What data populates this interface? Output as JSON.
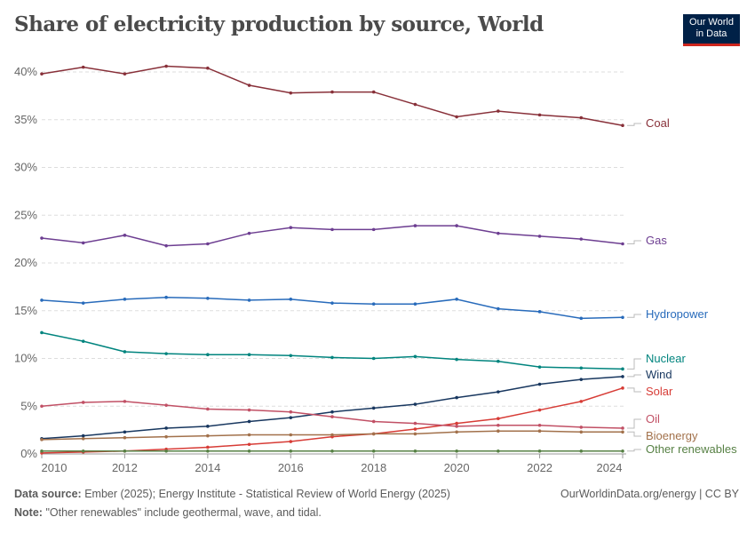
{
  "title": "Share of electricity production by source, World",
  "logo": {
    "line1": "Our World",
    "line2": "in Data"
  },
  "footer": {
    "source_label": "Data source:",
    "source": "Ember (2025); Energy Institute - Statistical Review of World Energy (2025)",
    "note_label": "Note:",
    "note": "\"Other renewables\" include geothermal, wave, and tidal.",
    "url": "OurWorldinData.org/energy | CC BY"
  },
  "chart_data": {
    "type": "line",
    "title": "Share of electricity production by source, World",
    "x": [
      2010,
      2011,
      2012,
      2013,
      2014,
      2015,
      2016,
      2017,
      2018,
      2019,
      2020,
      2021,
      2022,
      2023,
      2024
    ],
    "xticks": [
      "2010",
      "2012",
      "2014",
      "2016",
      "2018",
      "2020",
      "2022",
      "2024"
    ],
    "yticks": [
      "0%",
      "5%",
      "10%",
      "15%",
      "20%",
      "25%",
      "30%",
      "35%",
      "40%"
    ],
    "ylim": [
      0,
      40
    ],
    "grid": "horizontal dashed",
    "legend": "line-end labels right",
    "series": [
      {
        "name": "Coal",
        "color": "#883039",
        "values": [
          39.8,
          40.5,
          39.8,
          40.6,
          40.4,
          38.6,
          37.8,
          37.9,
          37.9,
          36.6,
          35.3,
          35.9,
          35.5,
          35.2,
          34.4
        ]
      },
      {
        "name": "Gas",
        "color": "#6d3e91",
        "values": [
          22.6,
          22.1,
          22.9,
          21.8,
          22.0,
          23.1,
          23.7,
          23.5,
          23.5,
          23.9,
          23.9,
          23.1,
          22.8,
          22.5,
          22.0
        ]
      },
      {
        "name": "Hydropower",
        "color": "#286bbb",
        "values": [
          16.1,
          15.8,
          16.2,
          16.4,
          16.3,
          16.1,
          16.2,
          15.8,
          15.7,
          15.7,
          16.2,
          15.2,
          14.9,
          14.2,
          14.3
        ]
      },
      {
        "name": "Nuclear",
        "color": "#00847e",
        "values": [
          12.7,
          11.8,
          10.7,
          10.5,
          10.4,
          10.4,
          10.3,
          10.1,
          10.0,
          10.2,
          9.9,
          9.7,
          9.1,
          9.0,
          8.9
        ]
      },
      {
        "name": "Wind",
        "color": "#18375f",
        "values": [
          1.6,
          1.9,
          2.3,
          2.7,
          2.9,
          3.4,
          3.8,
          4.4,
          4.8,
          5.2,
          5.9,
          6.5,
          7.3,
          7.8,
          8.1
        ]
      },
      {
        "name": "Solar",
        "color": "#d73c36",
        "values": [
          0.1,
          0.2,
          0.3,
          0.5,
          0.7,
          1.0,
          1.3,
          1.8,
          2.1,
          2.6,
          3.2,
          3.7,
          4.6,
          5.5,
          6.9
        ]
      },
      {
        "name": "Oil",
        "color": "#c15065",
        "values": [
          5.0,
          5.4,
          5.5,
          5.1,
          4.7,
          4.6,
          4.4,
          3.9,
          3.4,
          3.2,
          2.9,
          3.0,
          3.0,
          2.8,
          2.7
        ]
      },
      {
        "name": "Bioenergy",
        "color": "#a2714b",
        "values": [
          1.5,
          1.6,
          1.7,
          1.8,
          1.9,
          2.0,
          2.0,
          2.0,
          2.1,
          2.1,
          2.3,
          2.4,
          2.4,
          2.3,
          2.3
        ]
      },
      {
        "name": "Other renewables",
        "color": "#578145",
        "values": [
          0.3,
          0.3,
          0.3,
          0.3,
          0.3,
          0.3,
          0.3,
          0.3,
          0.3,
          0.3,
          0.3,
          0.3,
          0.3,
          0.3,
          0.3
        ]
      }
    ]
  }
}
